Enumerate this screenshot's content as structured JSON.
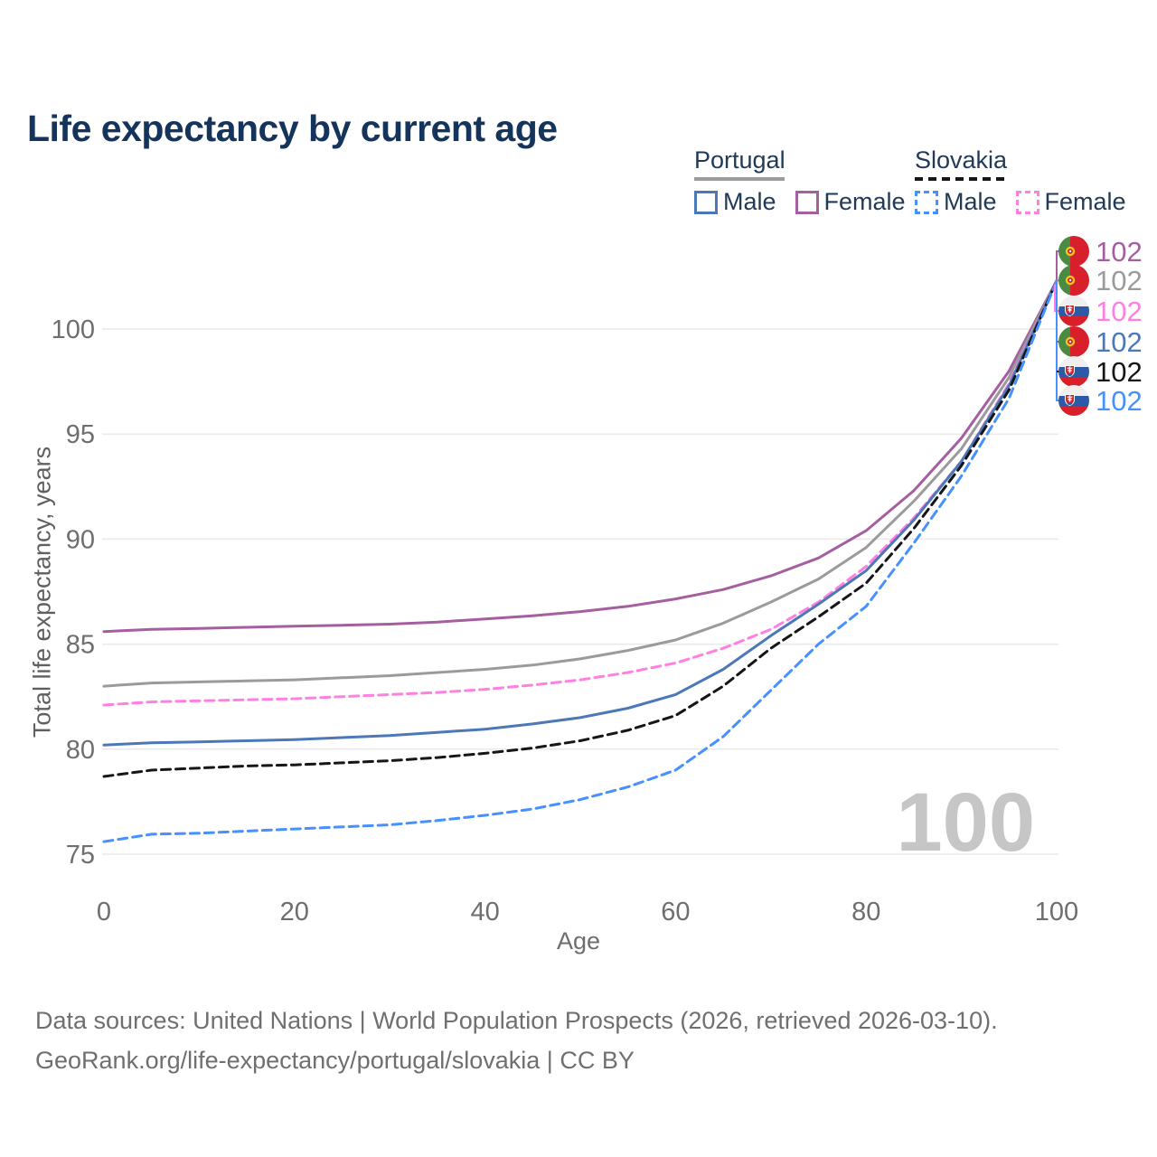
{
  "title": "Life expectancy by current age",
  "legend": {
    "groups": [
      {
        "label": "Portugal",
        "line_style": "solid",
        "line_color": "#9b9b9b",
        "items": [
          {
            "label": "Male",
            "color": "#4c78b8",
            "dashed": false
          },
          {
            "label": "Female",
            "color": "#a55fa0",
            "dashed": false
          }
        ]
      },
      {
        "label": "Slovakia",
        "line_style": "dashed",
        "line_color": "#161616",
        "items": [
          {
            "label": "Male",
            "color": "#4691ff",
            "dashed": true
          },
          {
            "label": "Female",
            "color": "#ff80e0",
            "dashed": true
          }
        ]
      }
    ]
  },
  "watermark_age": "100",
  "footer": {
    "line1": "Data sources: United Nations | World Population Prospects (2026, retrieved 2026-03-10).",
    "line2": "GeoRank.org/life-expectancy/portugal/slovakia | CC BY"
  },
  "chart_data": {
    "type": "line",
    "title": "Life expectancy by current age",
    "xlabel": "Age",
    "ylabel": "Total life expectancy, years",
    "x_ticks": [
      0,
      20,
      40,
      60,
      80,
      100
    ],
    "y_ticks": [
      75,
      80,
      85,
      90,
      95,
      100
    ],
    "xlim": [
      0,
      100
    ],
    "ylim": [
      74.5,
      103
    ],
    "grid": "horizontal-only",
    "gridline_color": "#e9e9e9",
    "ages": [
      0,
      5,
      10,
      15,
      20,
      25,
      30,
      35,
      40,
      45,
      50,
      55,
      60,
      65,
      70,
      75,
      80,
      85,
      90,
      95,
      100
    ],
    "series": [
      {
        "name": "Portugal Female",
        "country": "portugal",
        "sex": "female",
        "color": "#a55fa0",
        "dashed": false,
        "end_label": "102",
        "values": [
          85.6,
          85.7,
          85.75,
          85.8,
          85.85,
          85.9,
          85.95,
          86.05,
          86.2,
          86.35,
          86.55,
          86.8,
          87.15,
          87.6,
          88.25,
          89.1,
          90.4,
          92.3,
          94.8,
          98.0,
          102.3
        ]
      },
      {
        "name": "Portugal Both sexes",
        "country": "portugal",
        "sex": "both",
        "color": "#9b9b9b",
        "dashed": false,
        "end_label": "102",
        "values": [
          83.0,
          83.15,
          83.2,
          83.25,
          83.3,
          83.4,
          83.5,
          83.65,
          83.8,
          84.0,
          84.3,
          84.7,
          85.2,
          86.0,
          87.0,
          88.1,
          89.6,
          91.8,
          94.3,
          97.7,
          102.3
        ]
      },
      {
        "name": "Slovakia Female",
        "country": "slovakia",
        "sex": "female",
        "color": "#ff80e0",
        "dashed": true,
        "end_label": "102",
        "values": [
          82.1,
          82.25,
          82.3,
          82.35,
          82.4,
          82.5,
          82.6,
          82.7,
          82.85,
          83.05,
          83.3,
          83.65,
          84.1,
          84.8,
          85.7,
          87.0,
          88.7,
          91.0,
          93.7,
          97.4,
          102.3
        ]
      },
      {
        "name": "Portugal Male",
        "country": "portugal",
        "sex": "male",
        "color": "#4c78b8",
        "dashed": false,
        "end_label": "102",
        "values": [
          80.2,
          80.3,
          80.35,
          80.4,
          80.45,
          80.55,
          80.65,
          80.8,
          80.95,
          81.2,
          81.5,
          81.95,
          82.6,
          83.8,
          85.4,
          86.9,
          88.5,
          90.9,
          93.7,
          97.3,
          102.3
        ]
      },
      {
        "name": "Slovakia Both sexes",
        "country": "slovakia",
        "sex": "both",
        "color": "#161616",
        "dashed": true,
        "end_label": "102",
        "values": [
          78.7,
          79.0,
          79.1,
          79.2,
          79.25,
          79.35,
          79.45,
          79.6,
          79.8,
          80.05,
          80.4,
          80.9,
          81.6,
          83.0,
          84.8,
          86.3,
          87.9,
          90.5,
          93.5,
          97.1,
          102.3
        ]
      },
      {
        "name": "Slovakia Male",
        "country": "slovakia",
        "sex": "male",
        "color": "#4691ff",
        "dashed": true,
        "end_label": "102",
        "values": [
          75.6,
          75.95,
          76.0,
          76.1,
          76.2,
          76.3,
          76.4,
          76.6,
          76.85,
          77.15,
          77.6,
          78.2,
          79.0,
          80.6,
          82.8,
          85.0,
          86.8,
          89.8,
          93.0,
          96.7,
          102.3
        ]
      }
    ]
  }
}
